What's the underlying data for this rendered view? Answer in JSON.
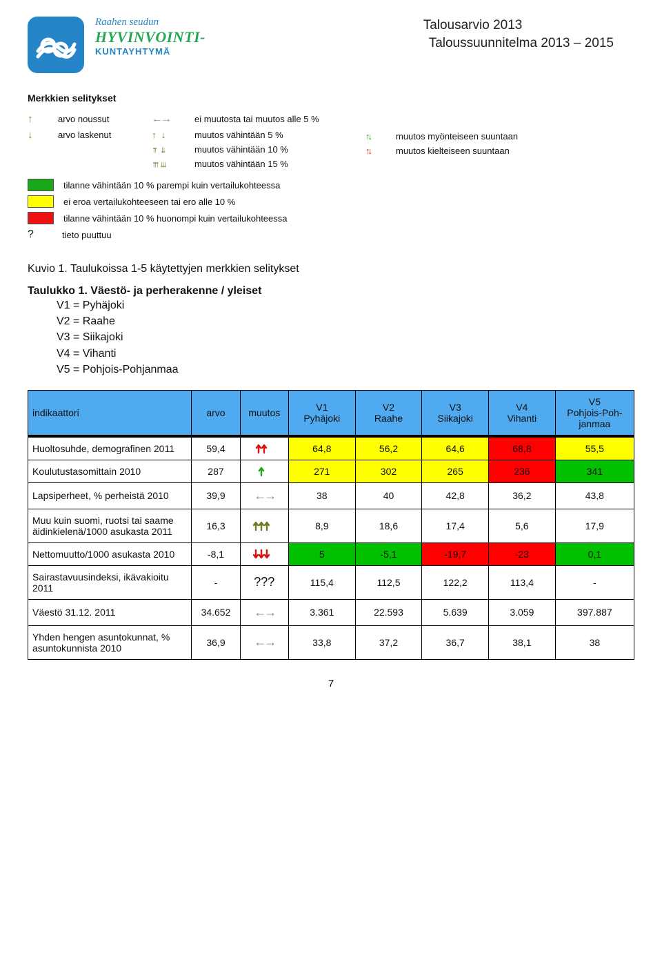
{
  "header": {
    "doc_title_line1": "Talousarvio 2013",
    "doc_title_line2": "Taloussuunnitelma 2013 – 2015",
    "logo_line1": "Raahen seudun",
    "logo_line2": "HYVINVOINTI-",
    "logo_line3": "KUNTAYHTYMÄ",
    "logo_bg": "#2585c6"
  },
  "legend": {
    "heading": "Merkkien selitykset",
    "col1": [
      {
        "sym": "single-up-olive",
        "text": "arvo noussut"
      },
      {
        "sym": "single-down-olive",
        "text": "arvo laskenut"
      }
    ],
    "col2_top": {
      "sym": "gray-lr-arrows",
      "text": "ei muutosta tai muutos alle 5 %"
    },
    "col2": [
      {
        "sym": "one-up-one-down-olive",
        "text": "muutos vähintään 5 %"
      },
      {
        "sym": "two-up-two-down-olive",
        "text": "muutos vähintään 10 %"
      },
      {
        "sym": "three-up-three-down-olive",
        "text": "muutos vähintään 15 %"
      }
    ],
    "col3": [
      {
        "sym": "green-up-down",
        "text": "muutos myönteiseen suuntaan"
      },
      {
        "sym": "red-up-down",
        "text": "muutos kielteiseen suuntaan"
      }
    ],
    "swatches": [
      {
        "cls": "sw-green",
        "text": "tilanne vähintään 10 % parempi kuin vertailukohteessa"
      },
      {
        "cls": "sw-yellow",
        "text": "ei eroa vertailukohteeseen tai ero alle 10 %"
      },
      {
        "cls": "sw-red",
        "text": "tilanne vähintään 10 % huonompi kuin vertailukohteessa"
      }
    ],
    "question": "tieto puuttuu"
  },
  "captions": {
    "kuvio": "Kuvio 1. Taulukoissa 1-5 käytettyjen merkkien selitykset",
    "taulukko": "Taulukko 1. Väestö- ja perherakenne / yleiset",
    "keys": [
      "V1 = Pyhäjoki",
      "V2 = Raahe",
      "V3 = Siikajoki",
      "V4 = Vihanti",
      "V5 = Pohjois-Pohjanmaa"
    ]
  },
  "table": {
    "header_bg": "#4faaf0",
    "cell_colors": {
      "green": "#00c000",
      "yellow": "#ffff00",
      "red": "#ff0000",
      "none": "#ffffff"
    },
    "columns": [
      "indikaattori",
      "arvo",
      "muutos",
      "V1 Pyhäjoki",
      "V2 Raahe",
      "V3 Siikajoki",
      "V4 Vihanti",
      "V5 Pohjois-Pohjanmaa"
    ],
    "col_widths_pct": [
      27,
      8,
      8,
      11,
      11,
      11,
      11,
      13
    ],
    "rows": [
      {
        "label": "Huoltosuhde, demografinen 2011",
        "arvo": "59,4",
        "muutos": {
          "type": "double-up",
          "color": "#d11"
        },
        "cells": [
          {
            "v": "64,8",
            "bg": "yellow"
          },
          {
            "v": "56,2",
            "bg": "yellow"
          },
          {
            "v": "64,6",
            "bg": "yellow"
          },
          {
            "v": "68,8",
            "bg": "red"
          },
          {
            "v": "55,5",
            "bg": "yellow"
          }
        ]
      },
      {
        "label": "Koulutustasomittain 2010",
        "arvo": "287",
        "muutos": {
          "type": "single-up",
          "color": "#1aa81a"
        },
        "cells": [
          {
            "v": "271",
            "bg": "yellow"
          },
          {
            "v": "302",
            "bg": "yellow"
          },
          {
            "v": "265",
            "bg": "yellow"
          },
          {
            "v": "236",
            "bg": "red"
          },
          {
            "v": "341",
            "bg": "green"
          }
        ]
      },
      {
        "label": "Lapsiperheet, % perheistä 2010",
        "arvo": "39,9",
        "muutos": {
          "type": "lr-gray",
          "color": "#888"
        },
        "cells": [
          {
            "v": "38",
            "bg": "none"
          },
          {
            "v": "40",
            "bg": "none"
          },
          {
            "v": "42,8",
            "bg": "none"
          },
          {
            "v": "36,2",
            "bg": "none"
          },
          {
            "v": "43,8",
            "bg": "none"
          }
        ]
      },
      {
        "label": "Muu kuin suomi, ruotsi tai saame äidinkielenä/1000 asukasta 2011",
        "arvo": "16,3",
        "muutos": {
          "type": "triple-up",
          "color": "#6f7a1f"
        },
        "cells": [
          {
            "v": "8,9",
            "bg": "none"
          },
          {
            "v": "18,6",
            "bg": "none"
          },
          {
            "v": "17,4",
            "bg": "none"
          },
          {
            "v": "5,6",
            "bg": "none"
          },
          {
            "v": "17,9",
            "bg": "none"
          }
        ]
      },
      {
        "label": "Nettomuutto/1000 asukasta 2010",
        "arvo": "-8,1",
        "muutos": {
          "type": "triple-down",
          "color": "#d11"
        },
        "cells": [
          {
            "v": "5",
            "bg": "green"
          },
          {
            "v": "-5,1",
            "bg": "green"
          },
          {
            "v": "-19,7",
            "bg": "red"
          },
          {
            "v": "-23",
            "bg": "red"
          },
          {
            "v": "0,1",
            "bg": "green"
          }
        ]
      },
      {
        "label": "Sairastavuusindeksi, ikävakioitu 2011",
        "arvo": "-",
        "muutos": {
          "type": "question",
          "color": "#000"
        },
        "cells": [
          {
            "v": "115,4",
            "bg": "none"
          },
          {
            "v": "112,5",
            "bg": "none"
          },
          {
            "v": "122,2",
            "bg": "none"
          },
          {
            "v": "113,4",
            "bg": "none"
          },
          {
            "v": "-",
            "bg": "none"
          }
        ]
      },
      {
        "label": "Väestö 31.12. 2011",
        "arvo": "34.652",
        "muutos": {
          "type": "lr-gray",
          "color": "#888"
        },
        "cells": [
          {
            "v": "3.361",
            "bg": "none"
          },
          {
            "v": "22.593",
            "bg": "none"
          },
          {
            "v": "5.639",
            "bg": "none"
          },
          {
            "v": "3.059",
            "bg": "none"
          },
          {
            "v": "397.887",
            "bg": "none"
          }
        ]
      },
      {
        "label": "Yhden hengen asuntokunnat, % asuntokunnista 2010",
        "arvo": "36,9",
        "muutos": {
          "type": "lr-gray",
          "color": "#888"
        },
        "cells": [
          {
            "v": "33,8",
            "bg": "none"
          },
          {
            "v": "37,2",
            "bg": "none"
          },
          {
            "v": "36,7",
            "bg": "none"
          },
          {
            "v": "38,1",
            "bg": "none"
          },
          {
            "v": "38",
            "bg": "none"
          }
        ]
      }
    ]
  },
  "page_number": "7"
}
